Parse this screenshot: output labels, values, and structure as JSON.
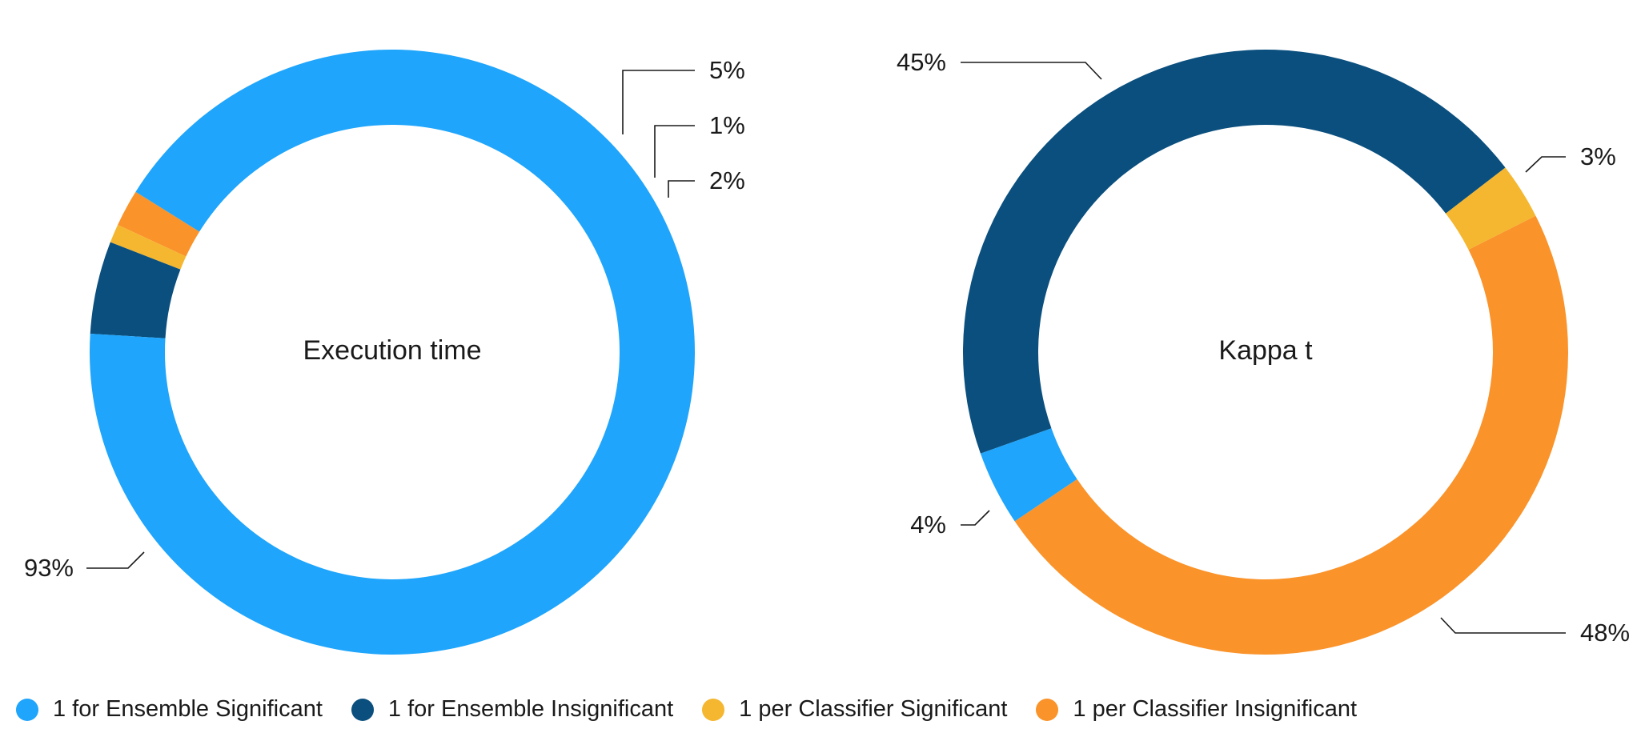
{
  "chart_data": [
    {
      "type": "pie",
      "title": "Execution time",
      "categories": [
        "1 for Ensemble Significant",
        "1 for Ensemble Insignificant",
        "1 per Classifier Significant",
        "1 per Classifier Insignificant"
      ],
      "values": [
        93,
        5,
        1,
        2
      ],
      "data_labels": [
        "93%",
        "5%",
        "1%",
        "2%"
      ]
    },
    {
      "type": "pie",
      "title": "Kappa t",
      "categories": [
        "1 for Ensemble Significant",
        "1 for Ensemble Insignificant",
        "1 per Classifier Significant",
        "1 per Classifier Insignificant"
      ],
      "values": [
        4,
        45,
        3,
        48
      ],
      "data_labels": [
        "4%",
        "45%",
        "3%",
        "48%"
      ]
    }
  ],
  "legend": {
    "placement": "bottom",
    "items": [
      {
        "label": "1 for Ensemble Significant",
        "color": "#1fa5fb"
      },
      {
        "label": "1 for Ensemble Insignificant",
        "color": "#0a4f7e"
      },
      {
        "label": "1 per Classifier Significant",
        "color": "#f5b730"
      },
      {
        "label": "1 per Classifier Insignificant",
        "color": "#fa932a"
      }
    ]
  }
}
